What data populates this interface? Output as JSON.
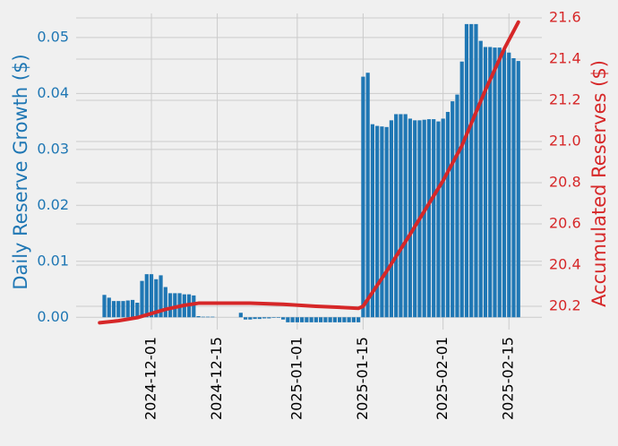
{
  "chart_data": {
    "type": "bar",
    "left_axis_label": "Daily Reserve Growth ($)",
    "right_axis_label": "Accumulated Reserves ($)",
    "x": [
      "2024-11-21",
      "2024-11-22",
      "2024-11-23",
      "2024-11-24",
      "2024-11-25",
      "2024-11-26",
      "2024-11-27",
      "2024-11-28",
      "2024-11-29",
      "2024-11-30",
      "2024-12-01",
      "2024-12-02",
      "2024-12-03",
      "2024-12-04",
      "2024-12-05",
      "2024-12-06",
      "2024-12-07",
      "2024-12-08",
      "2024-12-09",
      "2024-12-10",
      "2024-12-11",
      "2024-12-12",
      "2024-12-13",
      "2024-12-14",
      "2024-12-15",
      "2024-12-16",
      "2024-12-17",
      "2024-12-18",
      "2024-12-19",
      "2024-12-20",
      "2024-12-21",
      "2024-12-22",
      "2024-12-23",
      "2024-12-24",
      "2024-12-25",
      "2024-12-26",
      "2024-12-27",
      "2024-12-28",
      "2024-12-29",
      "2024-12-30",
      "2024-12-31",
      "2025-01-01",
      "2025-01-02",
      "2025-01-03",
      "2025-01-04",
      "2025-01-05",
      "2025-01-06",
      "2025-01-07",
      "2025-01-08",
      "2025-01-09",
      "2025-01-10",
      "2025-01-11",
      "2025-01-12",
      "2025-01-13",
      "2025-01-14",
      "2025-01-15",
      "2025-01-16",
      "2025-01-17",
      "2025-01-18",
      "2025-01-19",
      "2025-01-20",
      "2025-01-21",
      "2025-01-22",
      "2025-01-23",
      "2025-01-24",
      "2025-01-25",
      "2025-01-26",
      "2025-01-27",
      "2025-01-28",
      "2025-01-29",
      "2025-01-30",
      "2025-01-31",
      "2025-02-01",
      "2025-02-02",
      "2025-02-03",
      "2025-02-04",
      "2025-02-05",
      "2025-02-06",
      "2025-02-07",
      "2025-02-08",
      "2025-02-09",
      "2025-02-10",
      "2025-02-11",
      "2025-02-12",
      "2025-02-13",
      "2025-02-14",
      "2025-02-15",
      "2025-02-16",
      "2025-02-17"
    ],
    "series": [
      {
        "type": "bar",
        "color": "#1f77b4",
        "values": [
          0.004,
          0.0035,
          0.0029,
          0.0029,
          0.0029,
          0.003,
          0.0031,
          0.0026,
          0.0065,
          0.0077,
          0.0077,
          0.0068,
          0.0075,
          0.0054,
          0.0043,
          0.0043,
          0.0043,
          0.0041,
          0.0041,
          0.0039,
          0.0002,
          0.0001,
          0.0001,
          0.0001,
          0,
          0,
          0,
          0,
          0,
          0.0008,
          -0.0004,
          -0.0004,
          -0.0003,
          -0.0003,
          -0.0002,
          -0.0002,
          -0.0001,
          -0.0001,
          -0.0004,
          -0.0009,
          -0.0009,
          -0.0009,
          -0.0009,
          -0.0009,
          -0.0009,
          -0.0009,
          -0.0009,
          -0.0009,
          -0.0009,
          -0.0009,
          -0.0009,
          -0.0009,
          -0.0009,
          -0.0009,
          -0.0009,
          0.043,
          0.0437,
          0.0345,
          0.0342,
          0.0341,
          0.034,
          0.0352,
          0.0363,
          0.0363,
          0.0363,
          0.0355,
          0.0352,
          0.0352,
          0.0353,
          0.0354,
          0.0354,
          0.035,
          0.0355,
          0.0367,
          0.0386,
          0.0398,
          0.0457,
          0.0524,
          0.0524,
          0.0524,
          0.0494,
          0.0483,
          0.0483,
          0.0482,
          0.0482,
          0.0478,
          0.0473,
          0.0463,
          0.0458
        ]
      },
      {
        "type": "line",
        "axis": "y2",
        "color": "#d62728",
        "x": [
          "2024-11-20",
          "2024-11-24",
          "2024-11-28",
          "2024-12-01",
          "2024-12-04",
          "2024-12-08",
          "2024-12-11",
          "2024-12-15",
          "2024-12-22",
          "2024-12-29",
          "2025-01-05",
          "2025-01-10",
          "2025-01-14",
          "2025-01-15",
          "2025-01-20",
          "2025-01-25",
          "2025-02-01",
          "2025-02-05",
          "2025-02-10",
          "2025-02-14",
          "2025-02-17"
        ],
        "values": [
          20.12,
          20.13,
          20.145,
          20.165,
          20.185,
          20.205,
          20.215,
          20.215,
          20.215,
          20.21,
          20.2,
          20.195,
          20.19,
          20.2,
          20.37,
          20.55,
          20.81,
          20.98,
          21.25,
          21.45,
          21.58
        ]
      }
    ],
    "xlim": [
      "2024-11-15",
      "2025-02-22"
    ],
    "xticks": [
      "2024-12-01",
      "2024-12-15",
      "2025-01-01",
      "2025-01-15",
      "2025-02-01",
      "2025-02-15"
    ],
    "ylim": [
      -0.0022,
      0.0543
    ],
    "yticks": [
      {
        "value": 0,
        "label": "0.00"
      },
      {
        "value": 0.01,
        "label": "0.01"
      },
      {
        "value": 0.02,
        "label": "0.02"
      },
      {
        "value": 0.03,
        "label": "0.03"
      },
      {
        "value": 0.04,
        "label": "0.04"
      },
      {
        "value": 0.05,
        "label": "0.05"
      }
    ],
    "y2lim": [
      20.087,
      21.622
    ],
    "y2ticks": [
      20.2,
      20.4,
      20.6,
      20.8,
      {
        "value": 21,
        "label": "21.0"
      },
      21.2,
      21.4,
      21.6
    ],
    "grid": true,
    "y_color": "#1f77b4",
    "y2_color": "#d62728"
  }
}
